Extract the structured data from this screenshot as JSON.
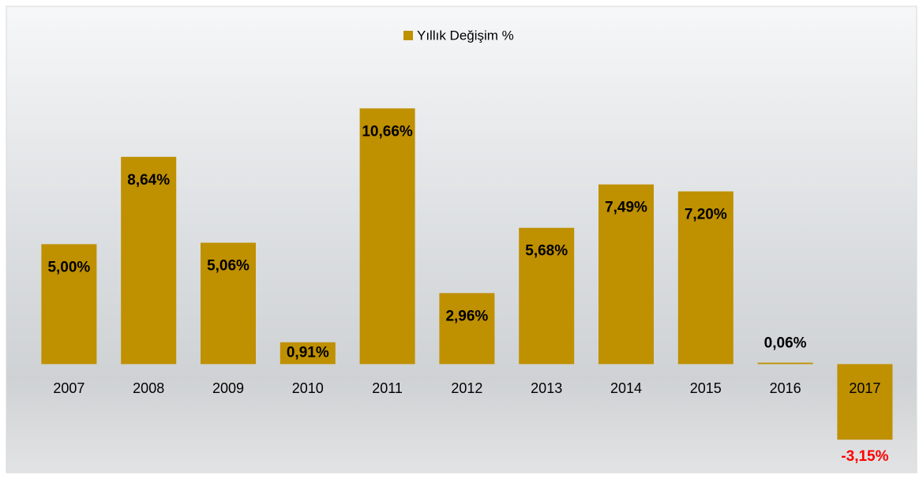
{
  "chart_data": {
    "type": "bar",
    "legend": "Yıllık Değişim %",
    "categories": [
      "2007",
      "2008",
      "2009",
      "2010",
      "2011",
      "2012",
      "2013",
      "2014",
      "2015",
      "2016",
      "2017"
    ],
    "values": [
      5.0,
      8.64,
      5.06,
      0.91,
      10.66,
      2.96,
      5.68,
      7.49,
      7.2,
      0.06,
      -3.15
    ],
    "value_labels": [
      "5,00%",
      "8,64%",
      "5,06%",
      "0,91%",
      "10,66%",
      "2,96%",
      "5,68%",
      "7,49%",
      "7,20%",
      "0,06%",
      "-3,15%"
    ],
    "color": "#bf9000",
    "negative_label_color": "#ff0000",
    "ylim": [
      -4,
      11
    ]
  }
}
